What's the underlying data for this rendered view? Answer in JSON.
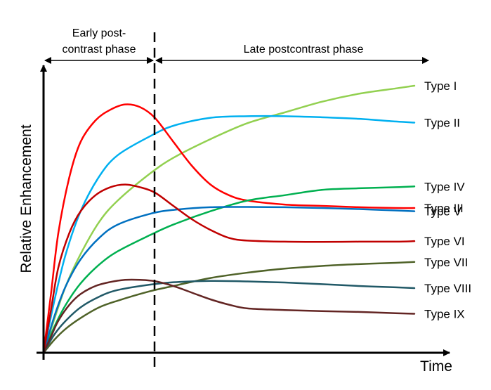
{
  "chart_data": {
    "type": "line",
    "title": "",
    "xlabel": "Time",
    "ylabel": "Relative Enhancement",
    "xlim": [
      0,
      100
    ],
    "ylim": [
      0,
      100
    ],
    "grid": false,
    "legend": "right",
    "phase_boundary_x": 28.6,
    "phases": [
      {
        "name_lines": [
          "Early post-",
          "contrast phase"
        ],
        "x_start": 0,
        "x_end": 28.6
      },
      {
        "name_lines": [
          "Late postcontrast phase"
        ],
        "x_start": 28.6,
        "x_end": 100
      }
    ],
    "series": [
      {
        "name": "Type I",
        "color": "#92d050",
        "points": [
          [
            0,
            0
          ],
          [
            3,
            13
          ],
          [
            6,
            25
          ],
          [
            10,
            37
          ],
          [
            15,
            49
          ],
          [
            20,
            57
          ],
          [
            28.6,
            67
          ],
          [
            35,
            73
          ],
          [
            45,
            80
          ],
          [
            55,
            86
          ],
          [
            65,
            90
          ],
          [
            75,
            94
          ],
          [
            85,
            97
          ],
          [
            95,
            99
          ],
          [
            100,
            100
          ]
        ]
      },
      {
        "name": "Type II",
        "color": "#00b0f0",
        "points": [
          [
            0,
            0
          ],
          [
            3,
            20
          ],
          [
            6,
            37
          ],
          [
            10,
            53
          ],
          [
            15,
            66
          ],
          [
            20,
            74
          ],
          [
            28.6,
            81
          ],
          [
            35,
            85
          ],
          [
            45,
            88
          ],
          [
            55,
            88.6
          ],
          [
            65,
            88.6
          ],
          [
            75,
            88.2
          ],
          [
            85,
            87.6
          ],
          [
            95,
            86.6
          ],
          [
            100,
            86.2
          ]
        ]
      },
      {
        "name": "Type III",
        "color": "#ff0000",
        "points": [
          [
            0,
            0
          ],
          [
            2,
            22
          ],
          [
            4,
            45
          ],
          [
            7,
            66
          ],
          [
            10,
            79
          ],
          [
            14,
            87
          ],
          [
            18,
            91
          ],
          [
            22,
            93
          ],
          [
            26,
            92
          ],
          [
            30,
            88
          ],
          [
            35,
            79
          ],
          [
            40,
            70
          ],
          [
            45,
            63
          ],
          [
            50,
            59
          ],
          [
            55,
            57
          ],
          [
            65,
            55.5
          ],
          [
            75,
            55
          ],
          [
            85,
            54.5
          ],
          [
            95,
            54.2
          ],
          [
            100,
            54.2
          ]
        ]
      },
      {
        "name": "Type IV",
        "color": "#00b050",
        "points": [
          [
            0,
            0
          ],
          [
            3,
            10
          ],
          [
            6,
            18
          ],
          [
            10,
            26
          ],
          [
            15,
            33
          ],
          [
            20,
            38
          ],
          [
            28.6,
            44
          ],
          [
            35,
            48
          ],
          [
            45,
            53
          ],
          [
            55,
            57
          ],
          [
            65,
            59
          ],
          [
            75,
            61
          ],
          [
            85,
            61.6
          ],
          [
            95,
            62
          ],
          [
            100,
            62.3
          ]
        ]
      },
      {
        "name": "Type V",
        "color": "#0070c0",
        "points": [
          [
            0,
            0
          ],
          [
            3,
            14
          ],
          [
            6,
            25
          ],
          [
            10,
            35
          ],
          [
            15,
            43
          ],
          [
            20,
            48
          ],
          [
            28.6,
            52
          ],
          [
            35,
            53.5
          ],
          [
            45,
            54.5
          ],
          [
            55,
            54.6
          ],
          [
            65,
            54.5
          ],
          [
            75,
            54.2
          ],
          [
            85,
            53.8
          ],
          [
            95,
            53.3
          ],
          [
            100,
            53
          ]
        ]
      },
      {
        "name": "Type VI",
        "color": "#c00000",
        "points": [
          [
            0,
            0
          ],
          [
            2,
            16
          ],
          [
            4,
            32
          ],
          [
            7,
            45
          ],
          [
            10,
            53
          ],
          [
            14,
            59
          ],
          [
            18,
            62
          ],
          [
            22,
            63
          ],
          [
            26,
            62
          ],
          [
            30,
            60
          ],
          [
            35,
            55
          ],
          [
            40,
            50
          ],
          [
            45,
            46
          ],
          [
            50,
            43
          ],
          [
            55,
            42
          ],
          [
            65,
            41.6
          ],
          [
            75,
            41.5
          ],
          [
            85,
            41.6
          ],
          [
            95,
            41.6
          ],
          [
            100,
            41.8
          ]
        ]
      },
      {
        "name": "Type VII",
        "color": "#4f6228",
        "points": [
          [
            0,
            0
          ],
          [
            3,
            5
          ],
          [
            6,
            9
          ],
          [
            10,
            13
          ],
          [
            15,
            17
          ],
          [
            20,
            19.5
          ],
          [
            28.6,
            23
          ],
          [
            35,
            25
          ],
          [
            45,
            28
          ],
          [
            55,
            30
          ],
          [
            65,
            31.5
          ],
          [
            75,
            32.5
          ],
          [
            85,
            33.2
          ],
          [
            95,
            33.7
          ],
          [
            100,
            34
          ]
        ]
      },
      {
        "name": "Type VIII",
        "color": "#215967",
        "points": [
          [
            0,
            0
          ],
          [
            3,
            7
          ],
          [
            6,
            12
          ],
          [
            10,
            17
          ],
          [
            15,
            21
          ],
          [
            20,
            23.5
          ],
          [
            28.6,
            25.5
          ],
          [
            35,
            26.4
          ],
          [
            45,
            26.9
          ],
          [
            55,
            26.7
          ],
          [
            65,
            26.3
          ],
          [
            75,
            25.7
          ],
          [
            85,
            25
          ],
          [
            95,
            24.5
          ],
          [
            100,
            24.2
          ]
        ]
      },
      {
        "name": "Type IX",
        "color": "#632523",
        "points": [
          [
            0,
            0
          ],
          [
            2,
            6
          ],
          [
            4,
            12
          ],
          [
            7,
            18
          ],
          [
            10,
            22
          ],
          [
            14,
            25
          ],
          [
            18,
            26.5
          ],
          [
            22,
            27.3
          ],
          [
            26,
            27.3
          ],
          [
            30,
            26.8
          ],
          [
            35,
            25
          ],
          [
            40,
            22.5
          ],
          [
            45,
            20
          ],
          [
            50,
            18
          ],
          [
            55,
            16.6
          ],
          [
            65,
            16
          ],
          [
            75,
            15.6
          ],
          [
            85,
            15.3
          ],
          [
            95,
            14.8
          ],
          [
            100,
            14.6
          ]
        ]
      }
    ]
  }
}
